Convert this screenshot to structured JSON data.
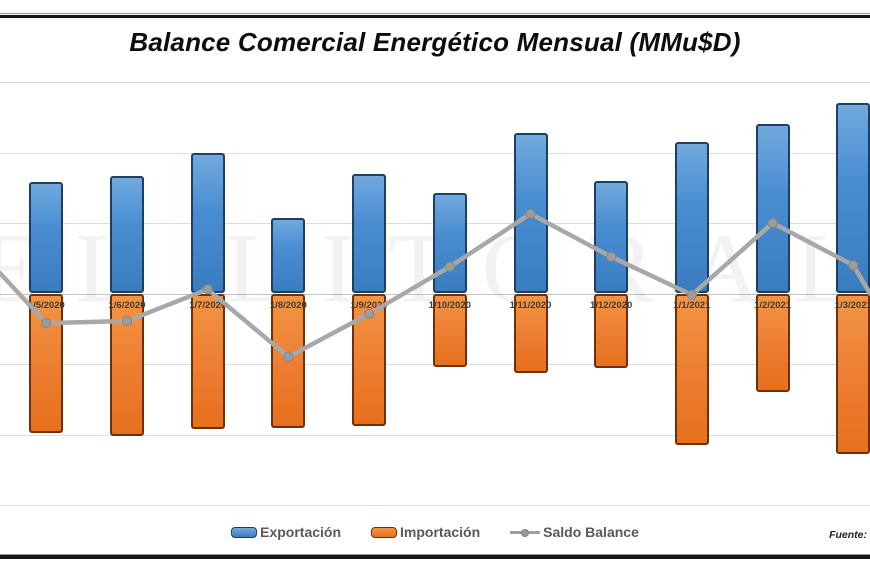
{
  "title": "Balance Comercial Energético Mensual (MMu$D)",
  "watermark": "EL LITORAL",
  "source_note": "Fuente:",
  "legend": {
    "items": [
      {
        "label": "Exportación",
        "type": "bar",
        "color": "#2e75b6"
      },
      {
        "label": "Importación",
        "type": "bar",
        "color": "#ed7d31"
      },
      {
        "label": "Saldo Balance",
        "type": "line",
        "color": "#a6a6a6"
      }
    ],
    "position": "bottom"
  },
  "chart_data": {
    "type": "bar",
    "subtype": "combo-bar-line",
    "title": "Balance Comercial Energético Mensual (MMu$D)",
    "categories": [
      "1/5/2020",
      "1/6/2020",
      "1/7/2020",
      "1/8/2020",
      "1/9/2020",
      "1/10/2020",
      "1/11/2020",
      "1/12/2020",
      "1/1/2021",
      "1/2/2021",
      "1/3/2021"
    ],
    "series": [
      {
        "name": "Exportación",
        "type": "bar",
        "color": "#2e75b6",
        "values": [
          158,
          167,
          199,
          107,
          170,
          143,
          228,
          160,
          215,
          240,
          270
        ]
      },
      {
        "name": "Importación",
        "type": "bar",
        "color": "#ed7d31",
        "values": [
          -198,
          -202,
          -192,
          -191,
          -188,
          -104,
          -113,
          -106,
          -215,
          -140,
          -227
        ]
      },
      {
        "name": "Saldo Balance",
        "type": "line",
        "color": "#a6a6a6",
        "values": [
          -42,
          -39,
          6,
          -90,
          -29,
          38,
          113,
          52,
          -2,
          100,
          40
        ]
      }
    ],
    "line_edge_values": {
      "left": 29,
      "right": 0
    },
    "xlabel": "",
    "ylabel": "",
    "ylim": [
      -300,
      300
    ],
    "gridline_step": 100,
    "grid": "horizontal",
    "y_axis_labels_visible": false,
    "legend_position": "bottom"
  }
}
